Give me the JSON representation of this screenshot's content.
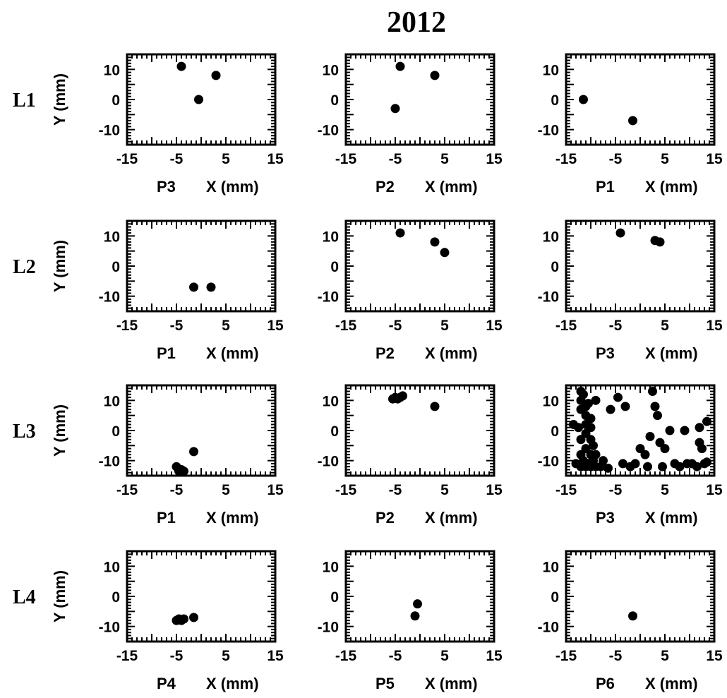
{
  "figure": {
    "title": "2012"
  },
  "chart_data": [
    {
      "type": "scatter",
      "row_label": "L1",
      "panel_label": "P3",
      "xlabel": "X (mm)",
      "ylabel": "Y (mm)",
      "xlim": [
        -15,
        15
      ],
      "ylim": [
        -15,
        15
      ],
      "x_ticks": [
        -15,
        -5,
        5,
        15
      ],
      "y_ticks": [
        10,
        0,
        -10
      ],
      "points": [
        [
          -4,
          11
        ],
        [
          3,
          8
        ],
        [
          -0.5,
          0
        ]
      ]
    },
    {
      "type": "scatter",
      "row_label": "L1",
      "panel_label": "P2",
      "xlabel": "X (mm)",
      "ylabel": "",
      "xlim": [
        -15,
        15
      ],
      "ylim": [
        -15,
        15
      ],
      "x_ticks": [
        -15,
        -5,
        5,
        15
      ],
      "y_ticks": [
        10,
        0,
        -10
      ],
      "points": [
        [
          -4,
          11
        ],
        [
          3,
          8
        ],
        [
          -5,
          -3
        ]
      ]
    },
    {
      "type": "scatter",
      "row_label": "L1",
      "panel_label": "P1",
      "xlabel": "X (mm)",
      "ylabel": "",
      "xlim": [
        -15,
        15
      ],
      "ylim": [
        -15,
        15
      ],
      "x_ticks": [
        -15,
        -5,
        5,
        15
      ],
      "y_ticks": [
        10,
        0,
        -10
      ],
      "points": [
        [
          -11.5,
          0
        ],
        [
          -1.5,
          -7
        ]
      ]
    },
    {
      "type": "scatter",
      "row_label": "L2",
      "panel_label": "P1",
      "xlabel": "X (mm)",
      "ylabel": "Y (mm)",
      "xlim": [
        -15,
        15
      ],
      "ylim": [
        -15,
        15
      ],
      "x_ticks": [
        -15,
        -5,
        5,
        15
      ],
      "y_ticks": [
        10,
        0,
        -10
      ],
      "points": [
        [
          -1.5,
          -7
        ],
        [
          2,
          -7
        ]
      ]
    },
    {
      "type": "scatter",
      "row_label": "L2",
      "panel_label": "P2",
      "xlabel": "X (mm)",
      "ylabel": "",
      "xlim": [
        -15,
        15
      ],
      "ylim": [
        -15,
        15
      ],
      "x_ticks": [
        -15,
        -5,
        5,
        15
      ],
      "y_ticks": [
        10,
        0,
        -10
      ],
      "points": [
        [
          -4,
          11
        ],
        [
          3,
          8
        ],
        [
          5,
          4.5
        ]
      ]
    },
    {
      "type": "scatter",
      "row_label": "L2",
      "panel_label": "P3",
      "xlabel": "X (mm)",
      "ylabel": "",
      "xlim": [
        -15,
        15
      ],
      "ylim": [
        -15,
        15
      ],
      "x_ticks": [
        -15,
        -5,
        5,
        15
      ],
      "y_ticks": [
        10,
        0,
        -10
      ],
      "points": [
        [
          -4,
          11
        ],
        [
          3,
          8.5
        ],
        [
          4,
          8
        ]
      ]
    },
    {
      "type": "scatter",
      "row_label": "L3",
      "panel_label": "P1",
      "xlabel": "X (mm)",
      "ylabel": "Y (mm)",
      "xlim": [
        -15,
        15
      ],
      "ylim": [
        -15,
        15
      ],
      "x_ticks": [
        -15,
        -5,
        5,
        15
      ],
      "y_ticks": [
        10,
        0,
        -10
      ],
      "points": [
        [
          -5,
          -12
        ],
        [
          -4.5,
          -13.5
        ],
        [
          -4,
          -13
        ],
        [
          -3.5,
          -13.5
        ],
        [
          -1.5,
          -7
        ]
      ]
    },
    {
      "type": "scatter",
      "row_label": "L3",
      "panel_label": "P2",
      "xlabel": "X (mm)",
      "ylabel": "",
      "xlim": [
        -15,
        15
      ],
      "ylim": [
        -15,
        15
      ],
      "x_ticks": [
        -15,
        -5,
        5,
        15
      ],
      "y_ticks": [
        10,
        0,
        -10
      ],
      "points": [
        [
          -5.5,
          10.5
        ],
        [
          -5,
          11
        ],
        [
          -4.5,
          10.5
        ],
        [
          -4,
          11
        ],
        [
          -3.5,
          11.5
        ],
        [
          3,
          8
        ]
      ]
    },
    {
      "type": "scatter",
      "row_label": "L3",
      "panel_label": "P3",
      "xlabel": "X (mm)",
      "ylabel": "",
      "xlim": [
        -15,
        15
      ],
      "ylim": [
        -15,
        15
      ],
      "x_ticks": [
        -15,
        -5,
        5,
        15
      ],
      "y_ticks": [
        10,
        0,
        -10
      ],
      "points": [
        [
          -12,
          13
        ],
        [
          -11.5,
          12
        ],
        [
          -12,
          10
        ],
        [
          -11,
          8
        ],
        [
          -10.5,
          9
        ],
        [
          -12,
          7
        ],
        [
          -11,
          5
        ],
        [
          -10,
          4
        ],
        [
          -9,
          10
        ],
        [
          -13.5,
          2
        ],
        [
          -12.5,
          1
        ],
        [
          -11,
          2
        ],
        [
          -10,
          1
        ],
        [
          -11,
          -1
        ],
        [
          -12,
          -3
        ],
        [
          -10,
          -3
        ],
        [
          -9.5,
          -5
        ],
        [
          -11,
          -6
        ],
        [
          -12,
          -8
        ],
        [
          -10,
          -8
        ],
        [
          -9,
          -8
        ],
        [
          -13,
          -11
        ],
        [
          -12,
          -12
        ],
        [
          -11.5,
          -10
        ],
        [
          -11,
          -12
        ],
        [
          -10.5,
          -11
        ],
        [
          -10,
          -12
        ],
        [
          -9.5,
          -10
        ],
        [
          -9,
          -12
        ],
        [
          -8,
          -12
        ],
        [
          -7.5,
          -10
        ],
        [
          -6.5,
          -12.5
        ],
        [
          -6,
          7
        ],
        [
          -4.5,
          11
        ],
        [
          -3,
          8
        ],
        [
          -3.5,
          -11
        ],
        [
          -2,
          -12
        ],
        [
          -1,
          -11
        ],
        [
          0,
          -6
        ],
        [
          1,
          -8
        ],
        [
          1.5,
          -12
        ],
        [
          2,
          -2
        ],
        [
          2.5,
          13
        ],
        [
          3,
          8
        ],
        [
          3.5,
          5
        ],
        [
          4,
          -4
        ],
        [
          4.5,
          -12
        ],
        [
          5,
          -6
        ],
        [
          6,
          0
        ],
        [
          7,
          -11
        ],
        [
          8,
          -12
        ],
        [
          9,
          0
        ],
        [
          9.5,
          -11
        ],
        [
          10.5,
          -11
        ],
        [
          11.5,
          -12
        ],
        [
          12,
          1
        ],
        [
          12,
          -4
        ],
        [
          12.5,
          -6
        ],
        [
          13,
          -11
        ],
        [
          13.5,
          3
        ],
        [
          13.5,
          -10.5
        ]
      ]
    },
    {
      "type": "scatter",
      "row_label": "L4",
      "panel_label": "P4",
      "xlabel": "X (mm)",
      "ylabel": "Y (mm)",
      "xlim": [
        -15,
        15
      ],
      "ylim": [
        -15,
        15
      ],
      "x_ticks": [
        -15,
        -5,
        5,
        15
      ],
      "y_ticks": [
        10,
        0,
        -10
      ],
      "points": [
        [
          -5,
          -8
        ],
        [
          -4.5,
          -7.5
        ],
        [
          -4,
          -8
        ],
        [
          -3.5,
          -7.5
        ],
        [
          -1.5,
          -7
        ]
      ]
    },
    {
      "type": "scatter",
      "row_label": "L4",
      "panel_label": "P5",
      "xlabel": "X (mm)",
      "ylabel": "",
      "xlim": [
        -15,
        15
      ],
      "ylim": [
        -15,
        15
      ],
      "x_ticks": [
        -15,
        -5,
        5,
        15
      ],
      "y_ticks": [
        10,
        0,
        -10
      ],
      "points": [
        [
          -0.5,
          -2.5
        ],
        [
          -1,
          -6.5
        ]
      ]
    },
    {
      "type": "scatter",
      "row_label": "L4",
      "panel_label": "P6",
      "xlabel": "X (mm)",
      "ylabel": "",
      "xlim": [
        -15,
        15
      ],
      "ylim": [
        -15,
        15
      ],
      "x_ticks": [
        -15,
        -5,
        5,
        15
      ],
      "y_ticks": [
        10,
        0,
        -10
      ],
      "points": [
        [
          -1.5,
          -6.5
        ]
      ]
    }
  ]
}
